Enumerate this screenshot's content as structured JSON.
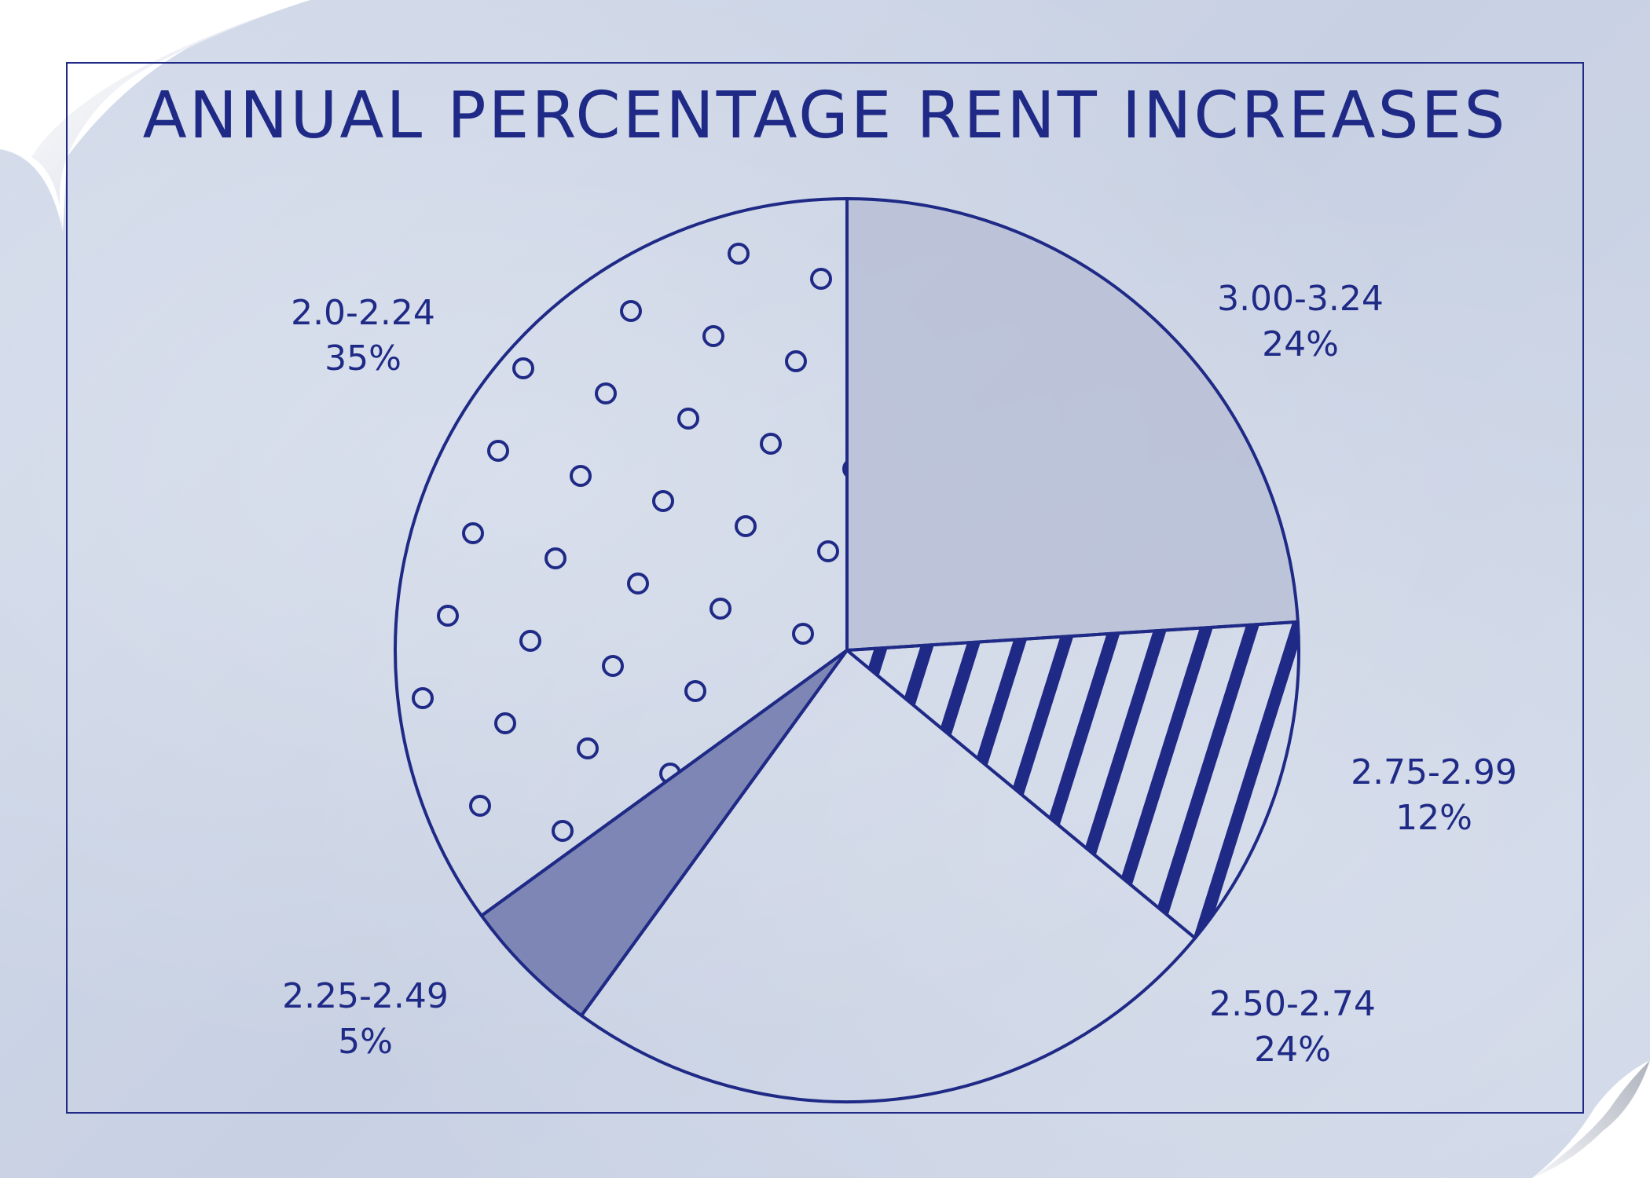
{
  "chart_data": {
    "type": "pie",
    "title": "ANNUAL PERCENTAGE RENT INCREASES",
    "slices": [
      {
        "label": "3.00-3.24",
        "percent_label": "24%",
        "value": 24,
        "pattern": "solid-light"
      },
      {
        "label": "2.75-2.99",
        "percent_label": "12%",
        "value": 12,
        "pattern": "stripes"
      },
      {
        "label": "2.50-2.74",
        "percent_label": "24%",
        "value": 24,
        "pattern": "plain"
      },
      {
        "label": "2.25-2.49",
        "percent_label": "5%",
        "value": 5,
        "pattern": "solid-dark"
      },
      {
        "label": "2.0-2.24",
        "percent_label": "35%",
        "value": 35,
        "pattern": "circles"
      }
    ],
    "start": "12 o'clock",
    "direction": "clockwise"
  },
  "colors": {
    "ink": "#1f2a86",
    "paper": "#ccd5e5",
    "solid_light": "#b8c0d6",
    "solid_dark": "#7d86b4"
  }
}
